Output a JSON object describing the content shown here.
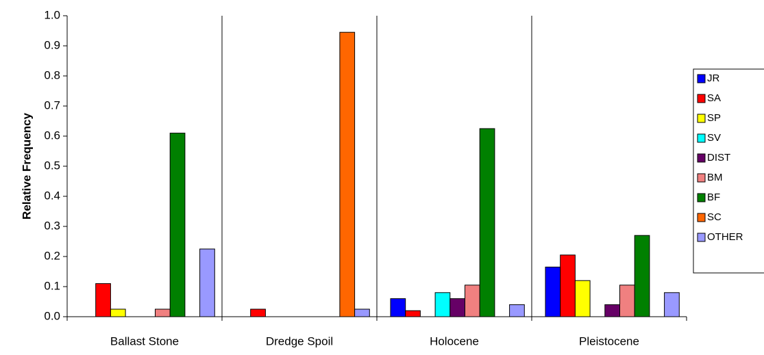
{
  "chart_data": {
    "type": "bar",
    "y_label": "Relative Frequency",
    "categories": [
      "Ballast Stone",
      "Dredge Spoil",
      "Holocene",
      "Pleistocene"
    ],
    "series": [
      {
        "name": "JR",
        "color": "#0000ff",
        "values": [
          0,
          0,
          0.06,
          0.165
        ]
      },
      {
        "name": "SA",
        "color": "#ff0000",
        "values": [
          0.11,
          0.025,
          0.02,
          0.205
        ]
      },
      {
        "name": "SP",
        "color": "#ffff00",
        "values": [
          0.025,
          0,
          0,
          0.12
        ]
      },
      {
        "name": "SV",
        "color": "#00ffff",
        "values": [
          0,
          0,
          0.08,
          0
        ]
      },
      {
        "name": "DIST",
        "color": "#660066",
        "values": [
          0,
          0,
          0.06,
          0.04
        ]
      },
      {
        "name": "BM",
        "color": "#f08080",
        "values": [
          0.025,
          0,
          0.105,
          0.105
        ]
      },
      {
        "name": "BF",
        "color": "#008000",
        "values": [
          0.61,
          0,
          0.625,
          0.27
        ]
      },
      {
        "name": "SC",
        "color": "#ff6600",
        "values": [
          0,
          0.945,
          0,
          0
        ]
      },
      {
        "name": "OTHER",
        "color": "#9999ff",
        "values": [
          0.225,
          0.025,
          0.04,
          0.08
        ]
      }
    ],
    "ylim": [
      0,
      1
    ],
    "yticks": [
      {
        "value": 0,
        "label": "0.0"
      },
      0.1,
      0.2,
      0.3,
      0.4,
      0.5,
      0.6,
      0.7,
      0.8,
      0.9,
      {
        "value": 1,
        "label": "1.0"
      }
    ],
    "legend": "right"
  }
}
